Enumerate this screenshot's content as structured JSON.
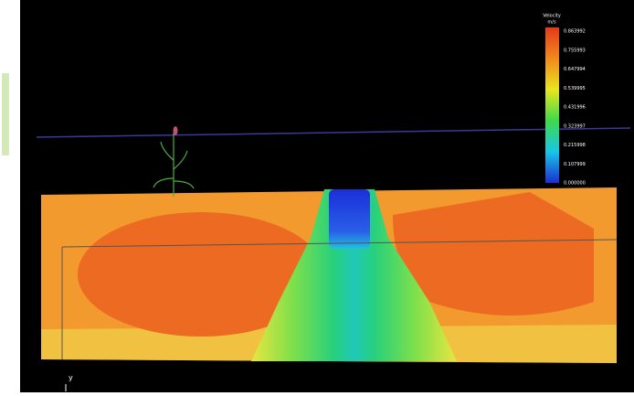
{
  "legend": {
    "title": "Velocity",
    "unit": "m/s",
    "labels": [
      "0.863992",
      "0.755993",
      "0.647994",
      "0.539995",
      "0.431996",
      "0.323997",
      "0.215998",
      "0.107999",
      "0.000000"
    ]
  },
  "axis_label": "y"
}
